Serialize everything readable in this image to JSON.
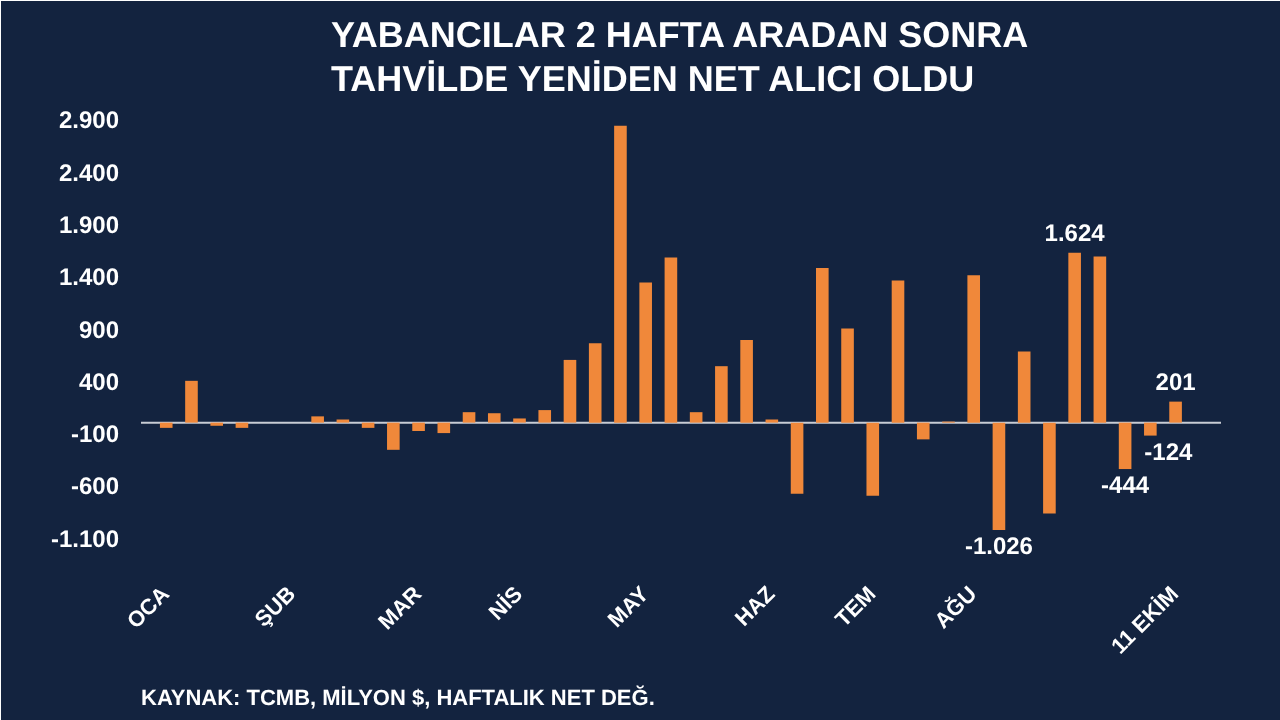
{
  "chart_data": {
    "type": "bar",
    "title": "YABANCILAR 2 HAFTA ARADAN SONRA\nTAHVİLDE YENİDEN NET ALICI OLDU",
    "categories": [
      "OCA",
      null,
      null,
      null,
      null,
      "ŞUB",
      null,
      null,
      null,
      null,
      "MAR",
      null,
      null,
      null,
      "NİS",
      null,
      null,
      null,
      null,
      "MAY",
      null,
      null,
      null,
      null,
      "HAZ",
      null,
      null,
      null,
      "TEM",
      null,
      null,
      null,
      "AĞU",
      null,
      null,
      null,
      null,
      null,
      null,
      null,
      "11 EKİM"
    ],
    "values": [
      -50,
      400,
      -30,
      -50,
      0,
      0,
      60,
      30,
      -50,
      -260,
      -80,
      -100,
      100,
      90,
      40,
      120,
      600,
      760,
      2840,
      1340,
      1580,
      100,
      540,
      790,
      30,
      -680,
      1480,
      900,
      -700,
      1360,
      -160,
      10,
      1410,
      -1026,
      680,
      -870,
      1624,
      1590,
      -444,
      -124,
      201
    ],
    "value_labels": [
      null,
      null,
      null,
      null,
      null,
      null,
      null,
      null,
      null,
      null,
      null,
      null,
      null,
      null,
      null,
      null,
      null,
      null,
      null,
      null,
      null,
      null,
      null,
      null,
      null,
      null,
      null,
      null,
      null,
      null,
      null,
      null,
      null,
      "-1.026",
      null,
      null,
      "1.624",
      null,
      "-444",
      "-124",
      "201"
    ],
    "color": "#f0883a",
    "ylim": [
      -1400,
      3000
    ],
    "yticks": [
      {
        "value": -1100,
        "label": "-1.100"
      },
      {
        "value": -600,
        "label": "-600"
      },
      {
        "value": -100,
        "label": "-100"
      },
      {
        "value": 400,
        "label": "400"
      },
      {
        "value": 900,
        "label": "900"
      },
      {
        "value": 1400,
        "label": "1.400"
      },
      {
        "value": 1900,
        "label": "1.900"
      },
      {
        "value": 2400,
        "label": "2.400"
      },
      {
        "value": 2900,
        "label": "2.900"
      }
    ],
    "grid": false,
    "annotations": [
      "KAYNAK: TCMB, MİLYON $, HAFTALIK NET DEĞ."
    ]
  }
}
